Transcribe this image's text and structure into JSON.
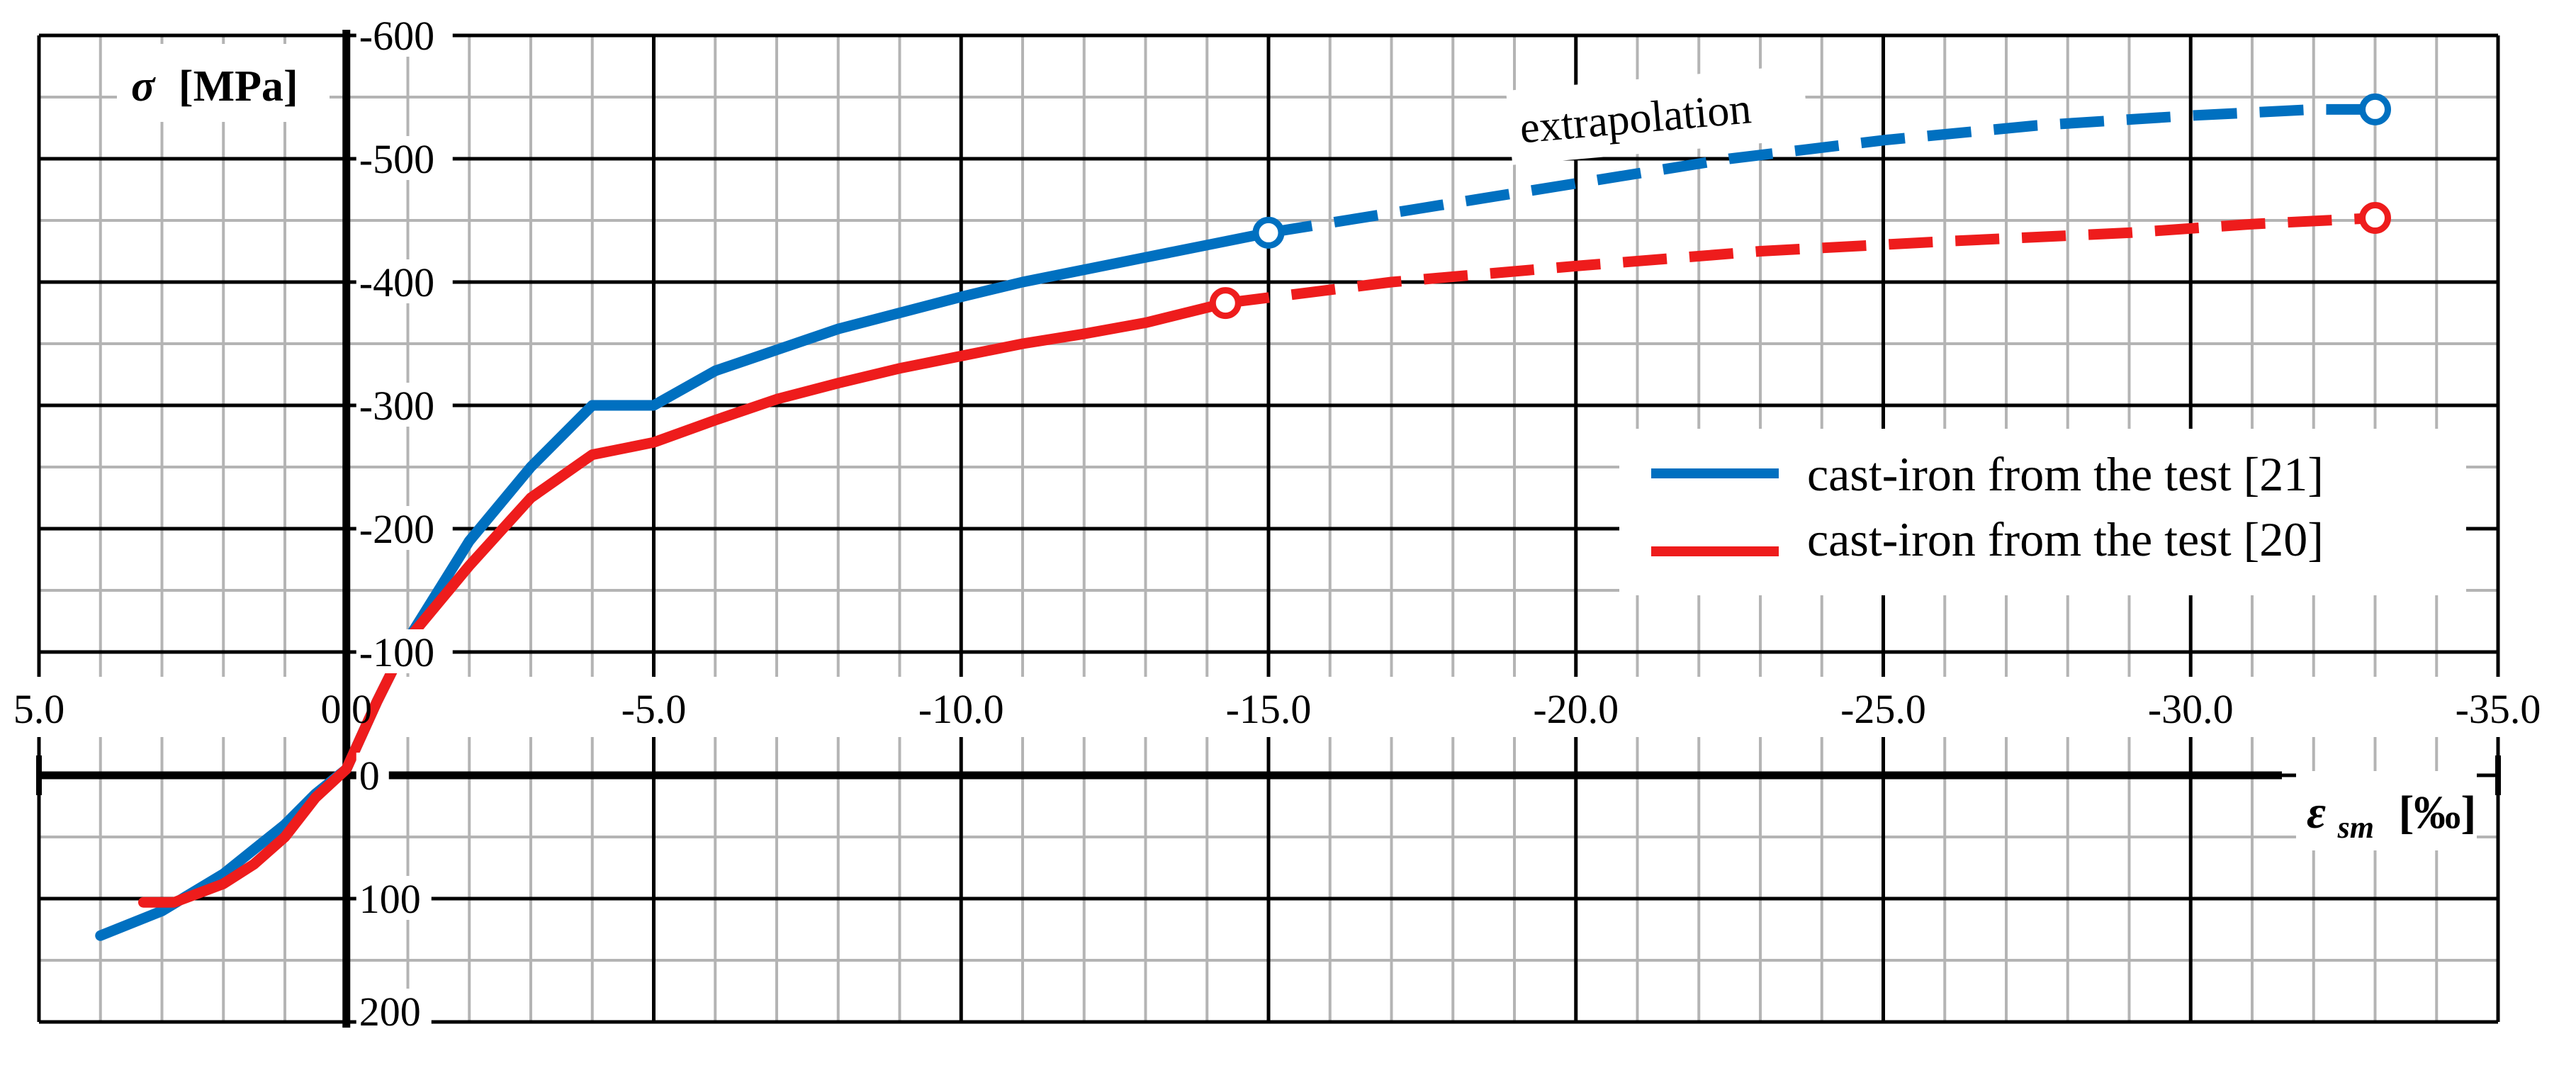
{
  "chart_data": {
    "type": "line",
    "title": "",
    "xlabel_symbol": "ε",
    "xlabel_subscript": "sm",
    "xlabel_unit": "[‰]",
    "ylabel_symbol": "σ",
    "ylabel_unit": "[MPa]",
    "xlim": [
      5.0,
      -35.0
    ],
    "ylim": [
      200,
      -600
    ],
    "x_ticks": [
      "5.0",
      "0.0",
      "-5.0",
      "-10.0",
      "-15.0",
      "-20.0",
      "-25.0",
      "-30.0",
      "-35.0"
    ],
    "y_ticks": [
      "-600",
      "-500",
      "-400",
      "-300",
      "-200",
      "-100",
      "0",
      "100",
      "200"
    ],
    "grid": true,
    "legend_position": "right",
    "annotation": "extrapolation",
    "colors": {
      "blue": "#0070c0",
      "red": "#ee1c1c"
    },
    "series": [
      {
        "name": "cast-iron from the test [21]",
        "color": "#0070c0",
        "x": [
          4.0,
          3.0,
          2.0,
          1.5,
          1.0,
          0.5,
          0.0,
          -0.5,
          -1.0,
          -2.0,
          -3.0,
          -4.0,
          -5.0,
          -6.0,
          -7.0,
          -8.0,
          -9.0,
          -10.0,
          -11.0,
          -12.0,
          -13.0,
          -14.0,
          -15.0
        ],
        "y": [
          130,
          110,
          80,
          60,
          40,
          15,
          -5,
          -60,
          -110,
          -190,
          -250,
          -300,
          -300,
          -328,
          -345,
          -362,
          -375,
          -388,
          -400,
          -410,
          -420,
          -430,
          -440
        ],
        "extrap_x": [
          -15.0,
          -17.5,
          -20.0,
          -22.5,
          -25.0,
          -27.5,
          -30.0,
          -32.0,
          -33.0
        ],
        "extrap_y": [
          -440,
          -460,
          -480,
          -500,
          -515,
          -527,
          -535,
          -540,
          -540
        ],
        "markers": [
          [
            -15.0,
            -440
          ],
          [
            -33.0,
            -540
          ]
        ]
      },
      {
        "name": "cast-iron from the test [20]",
        "color": "#ee1c1c",
        "x": [
          3.3,
          2.8,
          2.0,
          1.5,
          1.0,
          0.5,
          0.0,
          -0.5,
          -1.0,
          -2.0,
          -3.0,
          -4.0,
          -5.0,
          -6.0,
          -7.0,
          -8.0,
          -9.0,
          -10.0,
          -11.0,
          -12.0,
          -13.0,
          -14.3
        ],
        "y": [
          103,
          103,
          88,
          72,
          50,
          18,
          -5,
          -60,
          -110,
          -170,
          -225,
          -260,
          -270,
          -288,
          -305,
          -318,
          -330,
          -340,
          -350,
          -358,
          -367,
          -383
        ],
        "extrap_x": [
          -14.3,
          -17.0,
          -20.0,
          -23.0,
          -26.0,
          -29.0,
          -31.0,
          -33.0
        ],
        "extrap_y": [
          -383,
          -400,
          -413,
          -425,
          -433,
          -440,
          -447,
          -452
        ],
        "markers": [
          [
            -14.3,
            -383
          ],
          [
            -33.0,
            -452
          ]
        ]
      }
    ]
  }
}
